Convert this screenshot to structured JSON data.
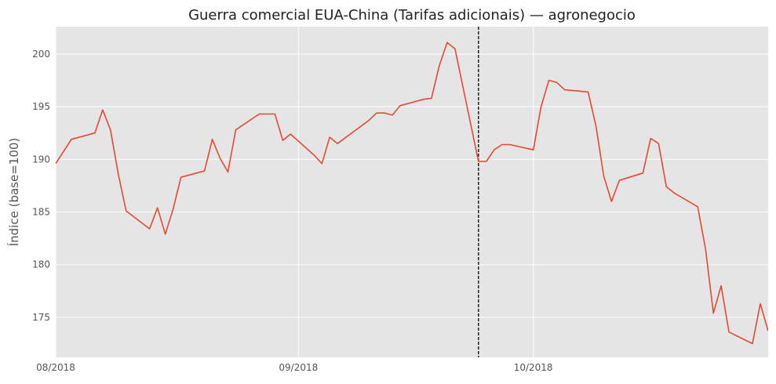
{
  "chart_data": {
    "type": "line",
    "title": "Guerra comercial EUA-China (Tarifas adicionais) — agronegocio",
    "xlabel": "",
    "ylabel": "Índice (base=100)",
    "xlim": [
      "2018-08-01",
      "2018-10-31"
    ],
    "ylim": [
      171.2,
      202.6
    ],
    "x_ticks": [
      "2018-08-01",
      "2018-09-01",
      "2018-10-01"
    ],
    "x_tick_labels": [
      "08/2018",
      "09/2018",
      "10/2018"
    ],
    "y_ticks": [
      175,
      180,
      185,
      190,
      195,
      200
    ],
    "y_tick_labels": [
      "175",
      "180",
      "185",
      "190",
      "195",
      "200"
    ],
    "grid": true,
    "event_line": {
      "x": "2018-09-24",
      "style": "dashed",
      "color": "#000000"
    },
    "colors": {
      "line": "#e24a33",
      "plot_bg": "#e5e5e5",
      "grid": "#ffffff"
    },
    "series": [
      {
        "x": [
          "2018-08-01",
          "2018-08-03",
          "2018-08-06",
          "2018-08-07",
          "2018-08-08",
          "2018-08-09",
          "2018-08-10",
          "2018-08-13",
          "2018-08-14",
          "2018-08-15",
          "2018-08-16",
          "2018-08-17",
          "2018-08-20",
          "2018-08-21",
          "2018-08-22",
          "2018-08-23",
          "2018-08-24",
          "2018-08-27",
          "2018-08-28",
          "2018-08-29",
          "2018-08-30",
          "2018-08-31",
          "2018-09-03",
          "2018-09-04",
          "2018-09-05",
          "2018-09-06",
          "2018-09-10",
          "2018-09-11",
          "2018-09-12",
          "2018-09-13",
          "2018-09-14",
          "2018-09-17",
          "2018-09-18",
          "2018-09-19",
          "2018-09-20",
          "2018-09-21",
          "2018-09-24",
          "2018-09-25",
          "2018-09-26",
          "2018-09-27",
          "2018-09-28",
          "2018-10-01",
          "2018-10-02",
          "2018-10-03",
          "2018-10-04",
          "2018-10-05",
          "2018-10-08",
          "2018-10-09",
          "2018-10-10",
          "2018-10-11",
          "2018-10-12",
          "2018-10-15",
          "2018-10-16",
          "2018-10-17",
          "2018-10-18",
          "2018-10-19",
          "2018-10-22",
          "2018-10-23",
          "2018-10-24",
          "2018-10-25",
          "2018-10-26",
          "2018-10-29",
          "2018-10-30",
          "2018-10-31"
        ],
        "y": [
          189.6,
          191.9,
          192.5,
          194.7,
          192.8,
          188.6,
          185.1,
          183.4,
          185.4,
          182.9,
          185.3,
          188.3,
          188.9,
          191.9,
          190.1,
          188.8,
          192.8,
          194.3,
          194.3,
          194.3,
          191.8,
          192.4,
          190.4,
          189.6,
          192.1,
          191.5,
          193.7,
          194.4,
          194.4,
          194.2,
          195.1,
          195.7,
          195.8,
          198.9,
          201.1,
          200.5,
          189.8,
          189.8,
          190.9,
          191.4,
          191.4,
          190.9,
          195.0,
          197.5,
          197.3,
          196.6,
          196.4,
          193.2,
          188.4,
          186.0,
          188.0,
          188.7,
          192.0,
          191.5,
          187.4,
          186.8,
          185.5,
          181.5,
          175.4,
          178.0,
          173.6,
          172.5,
          176.3,
          173.7
        ]
      }
    ]
  }
}
